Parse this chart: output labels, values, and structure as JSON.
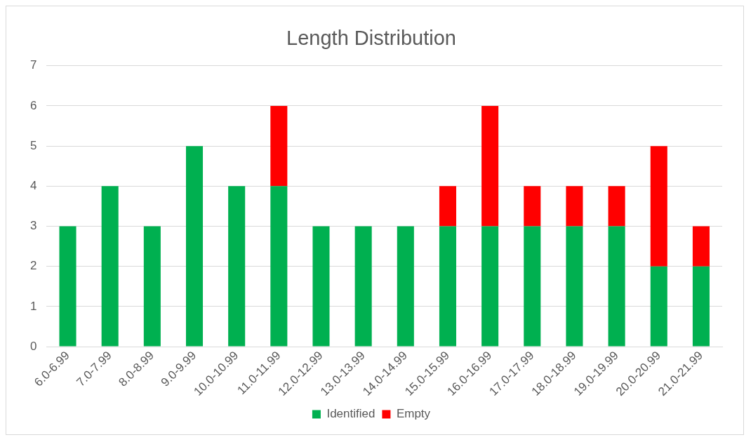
{
  "chart_data": {
    "type": "bar",
    "title": "Length Distribution",
    "stacked": true,
    "categories": [
      "6.0-6.99",
      "7.0-7.99",
      "8.0-8.99",
      "9.0-9.99",
      "10.0-10.99",
      "11.0-11.99",
      "12.0-12.99",
      "13.0-13.99",
      "14.0-14.99",
      "15.0-15.99",
      "16.0-16.99",
      "17.0-17.99",
      "18.0-18.99",
      "19.0-19.99",
      "20.0-20.99",
      "21.0-21.99"
    ],
    "series": [
      {
        "name": "Identified",
        "color": "#00b050",
        "values": [
          3,
          4,
          3,
          5,
          4,
          4,
          3,
          3,
          3,
          3,
          3,
          3,
          3,
          3,
          2,
          2
        ]
      },
      {
        "name": "Empty",
        "color": "#ff0000",
        "values": [
          null,
          null,
          null,
          null,
          null,
          2,
          null,
          null,
          null,
          1,
          3,
          1,
          1,
          1,
          3,
          1
        ]
      }
    ],
    "ylim": [
      0,
      7
    ],
    "yticks": [
      0,
      1,
      2,
      3,
      4,
      5,
      6,
      7
    ],
    "grid": "y",
    "legend": "bottom"
  }
}
